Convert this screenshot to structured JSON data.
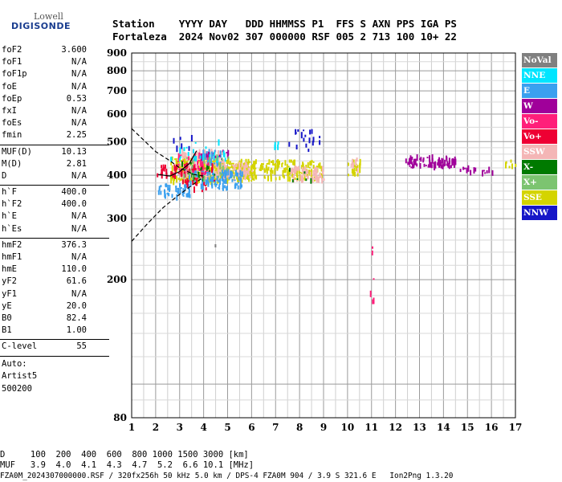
{
  "logo": {
    "line1": "Lowell",
    "line2": "DIGISONDE"
  },
  "header": {
    "line1": "Station    YYYY DAY   DDD HHMMSS P1  FFS S AXN PPS IGA PS",
    "line2": "Fortaleza  2024 Nov02 307 000000 RSF 005 2 713 100 10+ 22"
  },
  "params": {
    "group1": [
      [
        "foF2",
        "3.600"
      ],
      [
        "foF1",
        "N/A"
      ],
      [
        "foF1p",
        "N/A"
      ],
      [
        "foE",
        "N/A"
      ],
      [
        "foEp",
        "0.53"
      ],
      [
        "fxI",
        "N/A"
      ],
      [
        "foEs",
        "N/A"
      ],
      [
        "fmin",
        "2.25"
      ]
    ],
    "group2": [
      [
        "MUF(D)",
        "10.13"
      ],
      [
        "M(D)",
        "2.81"
      ],
      [
        "D",
        "N/A"
      ]
    ],
    "group3": [
      [
        "h`F",
        "400.0"
      ],
      [
        "h`F2",
        "400.0"
      ],
      [
        "h`E",
        "N/A"
      ],
      [
        "h`Es",
        "N/A"
      ]
    ],
    "group4": [
      [
        "hmF2",
        "376.3"
      ],
      [
        "hmF1",
        "N/A"
      ],
      [
        "hmE",
        "110.0"
      ],
      [
        "yF2",
        "61.6"
      ],
      [
        "yF1",
        "N/A"
      ],
      [
        "yE",
        "20.0"
      ],
      [
        "B0",
        "82.4"
      ],
      [
        "B1",
        "1.00"
      ]
    ],
    "group5": [
      [
        "C-level",
        "55"
      ]
    ],
    "auto": [
      "Auto:",
      "Artist5",
      "500200"
    ]
  },
  "footer": {
    "d_row": "D     100  200  400  600  800 1000 1500 3000 [km]",
    "muf_row": "MUF   3.9  4.0  4.1  4.3  4.7  5.2  6.6 10.1 [MHz]",
    "file_row": "FZA0M_2024307000000.RSF / 320fx256h 50 kHz 5.0 km / DPS-4 FZA0M 904 / 3.9 S 321.6 E   Ion2Png 1.3.20"
  },
  "legend": [
    {
      "label": "NoVal",
      "color": "#808080"
    },
    {
      "label": "NNE",
      "color": "#00e5ff"
    },
    {
      "label": "E",
      "color": "#3aa0ef"
    },
    {
      "label": "W",
      "color": "#a0009a"
    },
    {
      "label": "Vo-",
      "color": "#ff1f7a"
    },
    {
      "label": "Vo+",
      "color": "#ee0033"
    },
    {
      "label": "SSW",
      "color": "#f4b6b6"
    },
    {
      "label": "X-",
      "color": "#007a00"
    },
    {
      "label": "X+",
      "color": "#7cc470"
    },
    {
      "label": "SSE",
      "color": "#d4d400"
    },
    {
      "label": "NNW",
      "color": "#1616c8"
    }
  ],
  "chart_data": {
    "type": "scatter",
    "title": "",
    "xlabel": "",
    "ylabel": "",
    "xlim": [
      1,
      17
    ],
    "ylim": [
      80,
      900
    ],
    "y_scale": "log",
    "x_ticks": [
      "1",
      "2",
      "3",
      "4",
      "5",
      "6",
      "7",
      "8",
      "9",
      "10",
      "11",
      "12",
      "13",
      "14",
      "15",
      "16",
      "17"
    ],
    "y_ticks": [
      80,
      100,
      200,
      300,
      400,
      500,
      600,
      700,
      800,
      900
    ],
    "y_tick_labels": [
      "80",
      "",
      "200",
      "300",
      "400",
      "500",
      "600",
      "700",
      "800",
      "900"
    ],
    "grid": true,
    "legend_placement": "right",
    "series": [
      {
        "color": "#d4d400",
        "clusters": [
          {
            "x": [
              2.6,
              4.6
            ],
            "y": [
              380,
              450
            ],
            "n": 220
          },
          {
            "x": [
              4.6,
              6.2
            ],
            "y": [
              385,
              440
            ],
            "n": 140
          },
          {
            "x": [
              6.3,
              8.9
            ],
            "y": [
              390,
              440
            ],
            "n": 120
          },
          {
            "x": [
              10.0,
              10.6
            ],
            "y": [
              400,
              440
            ],
            "n": 20
          },
          {
            "x": [
              16.5,
              17.0
            ],
            "y": [
              420,
              440
            ],
            "n": 6
          }
        ]
      },
      {
        "color": "#f4b6b6",
        "clusters": [
          {
            "x": [
              3.0,
              4.8
            ],
            "y": [
              390,
              470
            ],
            "n": 150
          },
          {
            "x": [
              4.8,
              6.0
            ],
            "y": [
              390,
              430
            ],
            "n": 60
          },
          {
            "x": [
              7.6,
              9.0
            ],
            "y": [
              385,
              420
            ],
            "n": 70
          },
          {
            "x": [
              10.1,
              10.4
            ],
            "y": [
              405,
              445
            ],
            "n": 8
          }
        ]
      },
      {
        "color": "#3aa0ef",
        "clusters": [
          {
            "x": [
              2.0,
              3.4
            ],
            "y": [
              345,
              375
            ],
            "n": 45
          },
          {
            "x": [
              3.3,
              5.6
            ],
            "y": [
              365,
              410
            ],
            "n": 110
          },
          {
            "x": [
              3.8,
              4.8
            ],
            "y": [
              430,
              470
            ],
            "n": 30
          }
        ]
      },
      {
        "color": "#ff1f7a",
        "clusters": [
          {
            "x": [
              2.9,
              4.2
            ],
            "y": [
              400,
              460
            ],
            "n": 50
          },
          {
            "x": [
              10.9,
              11.1
            ],
            "y": [
              160,
              250
            ],
            "n": 6
          }
        ]
      },
      {
        "color": "#ee0033",
        "clusters": [
          {
            "x": [
              2.0,
              3.3
            ],
            "y": [
              395,
              425
            ],
            "n": 25
          },
          {
            "x": [
              3.0,
              4.5
            ],
            "y": [
              360,
              430
            ],
            "n": 35
          }
        ]
      },
      {
        "color": "#a0009a",
        "clusters": [
          {
            "x": [
              12.4,
              14.5
            ],
            "y": [
              420,
              450
            ],
            "n": 80
          },
          {
            "x": [
              14.6,
              16.2
            ],
            "y": [
              405,
              420
            ],
            "n": 14
          },
          {
            "x": [
              3.8,
              5.0
            ],
            "y": [
              440,
              470
            ],
            "n": 12
          }
        ]
      },
      {
        "color": "#1616c8",
        "clusters": [
          {
            "x": [
              7.5,
              9.0
            ],
            "y": [
              470,
              540
            ],
            "n": 18
          },
          {
            "x": [
              2.5,
              3.5
            ],
            "y": [
              470,
              520
            ],
            "n": 6
          }
        ]
      },
      {
        "color": "#00e5ff",
        "clusters": [
          {
            "x": [
              2.5,
              5.0
            ],
            "y": [
              440,
              500
            ],
            "n": 25
          },
          {
            "x": [
              6.8,
              7.2
            ],
            "y": [
              470,
              500
            ],
            "n": 5
          }
        ]
      },
      {
        "color": "#007a00",
        "clusters": [
          {
            "x": [
              3.0,
              4.5
            ],
            "y": [
              380,
              440
            ],
            "n": 15
          },
          {
            "x": [
              7.5,
              8.5
            ],
            "y": [
              380,
              420
            ],
            "n": 6
          }
        ]
      },
      {
        "color": "#7cc470",
        "clusters": [
          {
            "x": [
              3.0,
              5.5
            ],
            "y": [
              390,
              450
            ],
            "n": 25
          }
        ]
      },
      {
        "color": "#808080",
        "clusters": [
          {
            "x": [
              4.4,
              4.6
            ],
            "y": [
              248,
              252
            ],
            "n": 1
          }
        ]
      }
    ],
    "profile_curve": [
      [
        1.0,
        545
      ],
      [
        2.0,
        468
      ],
      [
        2.6,
        440
      ],
      [
        3.0,
        420
      ],
      [
        3.6,
        402
      ],
      [
        4.0,
        398
      ]
    ],
    "profile_curve_lower": [
      [
        1.0,
        258
      ],
      [
        1.7,
        292
      ],
      [
        2.3,
        322
      ],
      [
        2.9,
        348
      ],
      [
        3.6,
        378
      ],
      [
        4.0,
        395
      ]
    ],
    "trace_curve": [
      [
        2.1,
        402
      ],
      [
        2.6,
        398
      ],
      [
        3.0,
        410
      ],
      [
        3.4,
        432
      ],
      [
        3.7,
        470
      ]
    ]
  }
}
